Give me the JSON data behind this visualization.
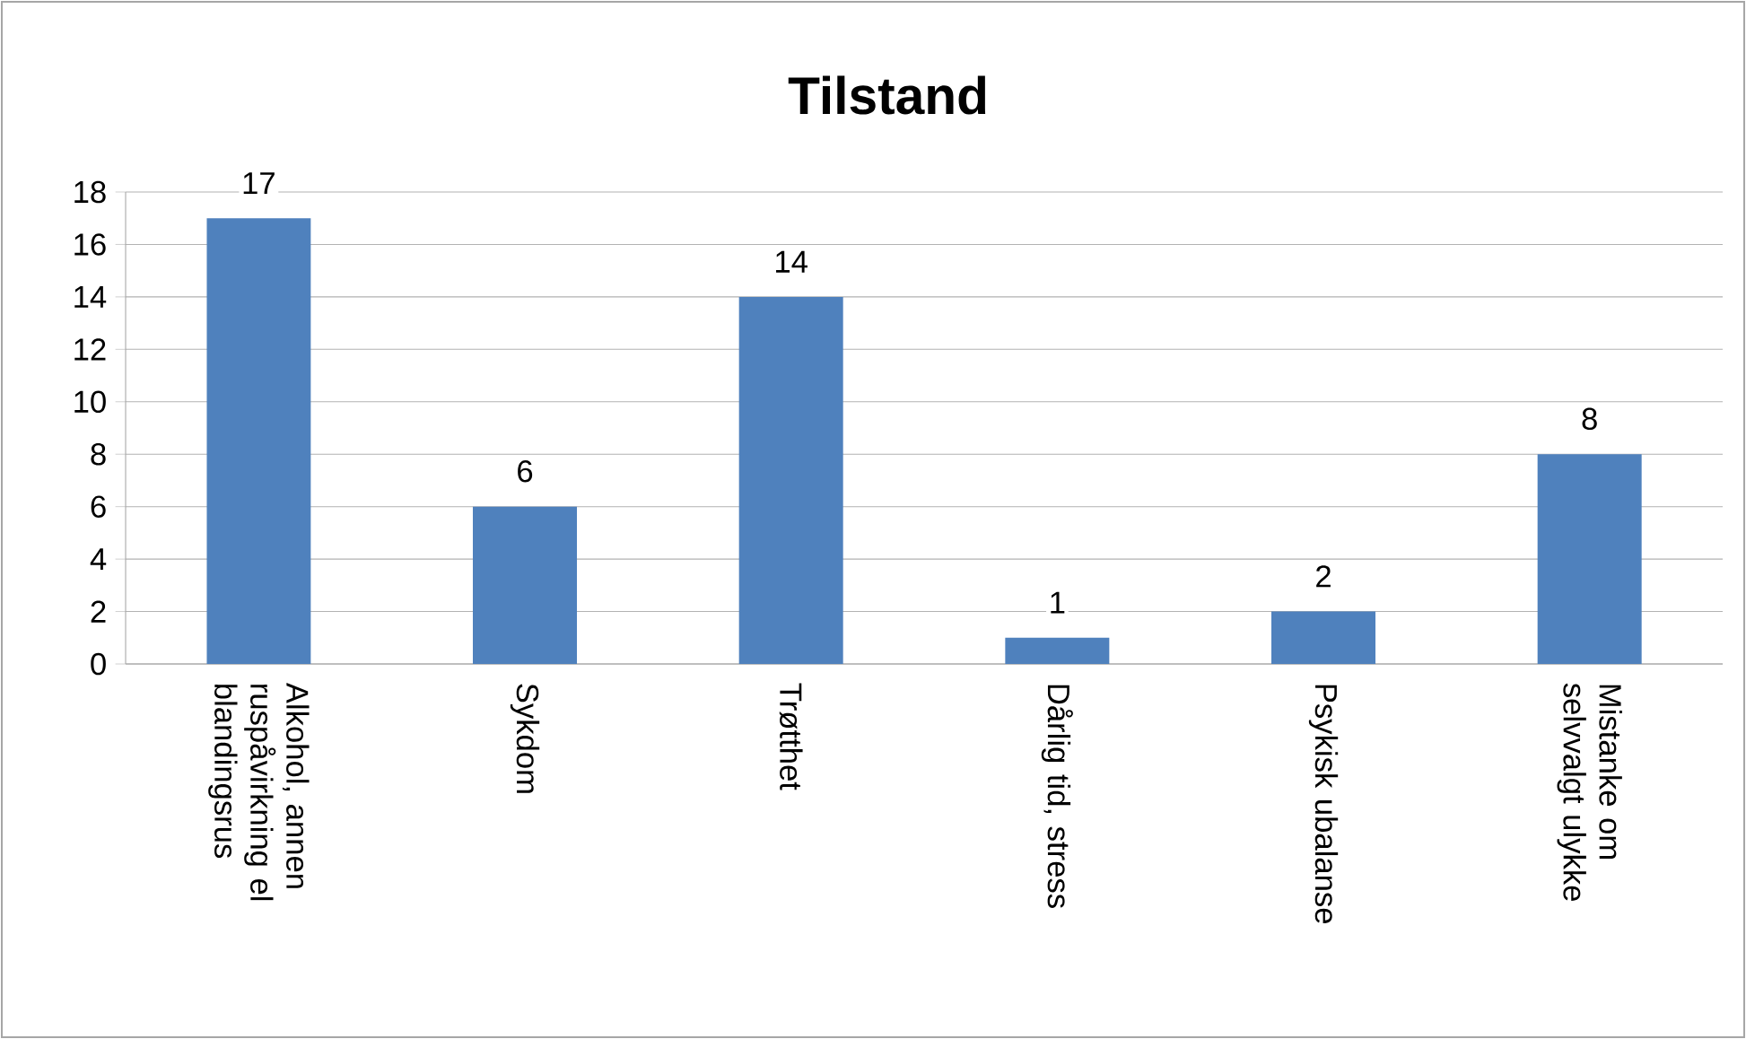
{
  "chart_data": {
    "type": "bar",
    "title": "Tilstand",
    "categories": [
      "Alkohol, annen ruspåvirkning el blandingsrus",
      "Sykdom",
      "Trøtthet",
      "Dårlig tid, stress",
      "Psykisk ubalanse",
      "Mistanke om selvvalgt ulykke"
    ],
    "values": [
      17,
      6,
      14,
      1,
      2,
      8
    ],
    "color": "#4f81bd",
    "ylim": [
      0,
      18
    ],
    "yticks": [
      0,
      2,
      4,
      6,
      8,
      10,
      12,
      14,
      16,
      18
    ],
    "grid": "y",
    "data_labels": true
  }
}
